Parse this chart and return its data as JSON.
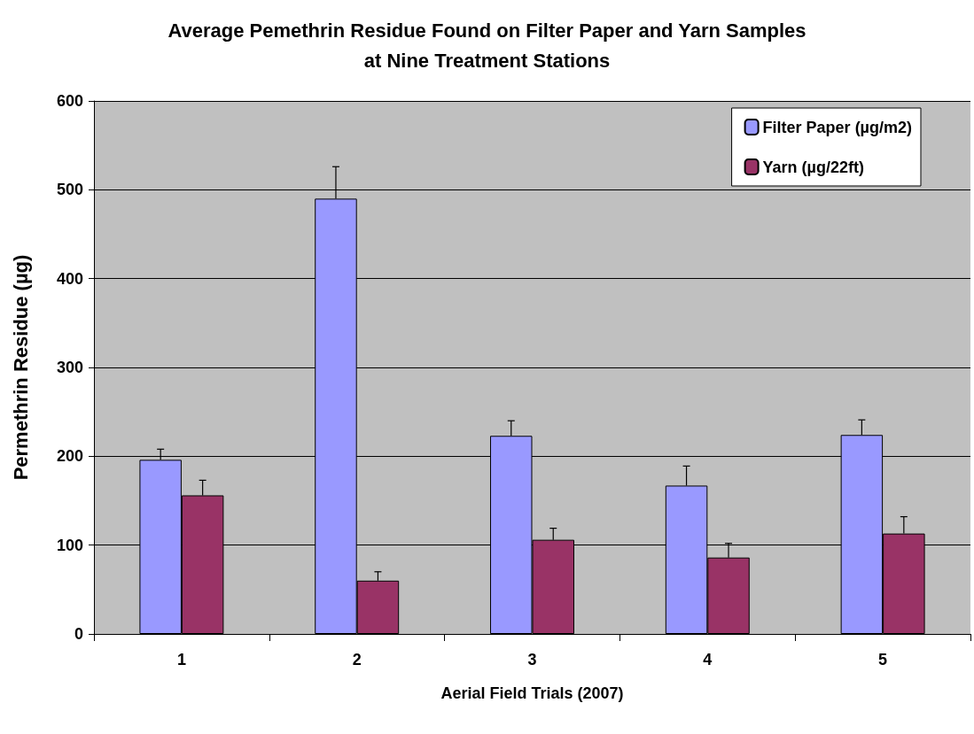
{
  "chart_data": {
    "type": "bar",
    "title": "Average Pemethrin Residue Found on Filter Paper and Yarn Samples\nat Nine Treatment Stations",
    "xlabel": "Aerial Field Trials (2007)",
    "ylabel": "Permethrin Residue (µg)",
    "categories": [
      "1",
      "2",
      "3",
      "4",
      "5"
    ],
    "series": [
      {
        "name": "Filter Paper (µg/m2)",
        "color": "#9999ff",
        "values": [
          196,
          490,
          223,
          167,
          224
        ],
        "errors": [
          [
            196,
            208
          ],
          [
            490,
            526
          ],
          [
            223,
            240
          ],
          [
            167,
            189
          ],
          [
            224,
            241
          ]
        ]
      },
      {
        "name": "Yarn (µg/22ft)",
        "color": "#993366",
        "values": [
          156,
          60,
          106,
          86,
          113
        ],
        "errors": [
          [
            156,
            173
          ],
          [
            60,
            70
          ],
          [
            106,
            119
          ],
          [
            86,
            102
          ],
          [
            113,
            132
          ]
        ]
      }
    ],
    "ylim": [
      0,
      600
    ],
    "yticks": [
      0,
      100,
      200,
      300,
      400,
      500,
      600
    ],
    "grid": "y",
    "legend": "top right"
  }
}
